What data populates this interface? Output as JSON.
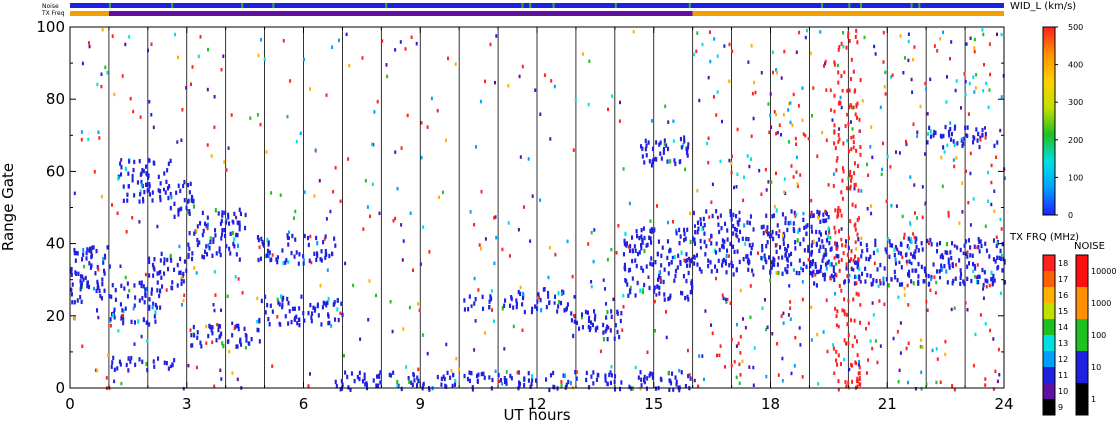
{
  "chart_data": {
    "type": "heatmap",
    "xlabel": "UT hours",
    "ylabel": "Range Gate",
    "xlim": [
      0,
      24
    ],
    "ylim": [
      0,
      100
    ],
    "x_ticks": [
      0,
      3,
      6,
      9,
      12,
      15,
      18,
      21,
      24
    ],
    "y_ticks": [
      0,
      20,
      40,
      60,
      80,
      100
    ],
    "grid": "vertical lines every hour",
    "strip_labels": {
      "noise": "Noise",
      "freq": "TX Freq"
    },
    "strips": {
      "noise_color": "#2020e0",
      "noise_green_marks_hours": [
        1.0,
        2.6,
        4.4,
        5.2,
        8.1,
        11.6,
        11.8,
        12.4,
        14.0,
        15.9,
        19.3,
        20.0,
        20.3,
        21.6,
        21.8
      ],
      "freq_segments": [
        {
          "from": 0.0,
          "to": 1.0,
          "color": "#f0a000"
        },
        {
          "from": 1.0,
          "to": 16.0,
          "color": "#6010a0"
        },
        {
          "from": 16.0,
          "to": 24.0,
          "color": "#f0a000"
        }
      ]
    },
    "velocity_colorbar": {
      "title": "WID_L (km/s)",
      "ticks": [
        0,
        100,
        200,
        300,
        400,
        500
      ],
      "colors": [
        "#2020ff",
        "#00a0ff",
        "#00e0e0",
        "#20c020",
        "#c0e000",
        "#ffd000",
        "#ff9000",
        "#ff2020"
      ]
    },
    "freq_colorbar": {
      "title": "TX FRQ (MHz)",
      "ticks": [
        "9",
        "10",
        "11",
        "12",
        "13",
        "14",
        "15",
        "16",
        "17",
        "18"
      ],
      "colors": [
        "#000000",
        "#6010a0",
        "#2020e0",
        "#00a0ff",
        "#00e0e0",
        "#20c020",
        "#c0e000",
        "#ffb000",
        "#ff6000",
        "#ff2020"
      ]
    },
    "noise_colorbar": {
      "title": "NOISE",
      "ticks": [
        "1",
        "10",
        "100",
        "1000",
        "10000"
      ],
      "colors": [
        "#000000",
        "#2020e0",
        "#20c020",
        "#ff9000",
        "#ff1010"
      ]
    },
    "echo_bands": [
      {
        "t0": 0.0,
        "t1": 1.0,
        "g0": 22,
        "g1": 40,
        "color": "#2020e0"
      },
      {
        "t0": 1.0,
        "t1": 2.3,
        "g0": 18,
        "g1": 30,
        "color": "#2020e0"
      },
      {
        "t0": 2.0,
        "t1": 3.0,
        "g0": 28,
        "g1": 38,
        "color": "#2020e0"
      },
      {
        "t0": 3.0,
        "t1": 4.5,
        "g0": 36,
        "g1": 50,
        "color": "#2020e0"
      },
      {
        "t0": 1.2,
        "t1": 2.6,
        "g0": 52,
        "g1": 64,
        "color": "#2020e0"
      },
      {
        "t0": 2.5,
        "t1": 3.2,
        "g0": 48,
        "g1": 58,
        "color": "#2020e0"
      },
      {
        "t0": 3.0,
        "t1": 5.0,
        "g0": 12,
        "g1": 18,
        "color": "#2020e0"
      },
      {
        "t0": 4.8,
        "t1": 7.0,
        "g0": 18,
        "g1": 26,
        "color": "#2020e0"
      },
      {
        "t0": 4.8,
        "t1": 6.8,
        "g0": 35,
        "g1": 43,
        "color": "#2020e0"
      },
      {
        "t0": 1.0,
        "t1": 2.7,
        "g0": 5,
        "g1": 9,
        "color": "#2020e0"
      },
      {
        "t0": 6.8,
        "t1": 16.0,
        "g0": 0,
        "g1": 5,
        "color": "#2020e0"
      },
      {
        "t0": 10.0,
        "t1": 11.5,
        "g0": 22,
        "g1": 26,
        "color": "#2020e0"
      },
      {
        "t0": 11.5,
        "t1": 12.8,
        "g0": 21,
        "g1": 28,
        "color": "#2020e0"
      },
      {
        "t0": 12.8,
        "t1": 14.2,
        "g0": 14,
        "g1": 22,
        "color": "#2020e0"
      },
      {
        "t0": 14.2,
        "t1": 16.0,
        "g0": 25,
        "g1": 45,
        "color": "#2020e0"
      },
      {
        "t0": 14.6,
        "t1": 15.9,
        "g0": 62,
        "g1": 70,
        "color": "#2020e0"
      },
      {
        "t0": 16.0,
        "t1": 19.5,
        "g0": 32,
        "g1": 50,
        "color": "#2020e0"
      },
      {
        "t0": 19.0,
        "t1": 24.0,
        "g0": 29,
        "g1": 42,
        "color": "#2020e0"
      },
      {
        "t0": 22.0,
        "t1": 23.8,
        "g0": 67,
        "g1": 73,
        "color": "#2020e0"
      }
    ]
  }
}
